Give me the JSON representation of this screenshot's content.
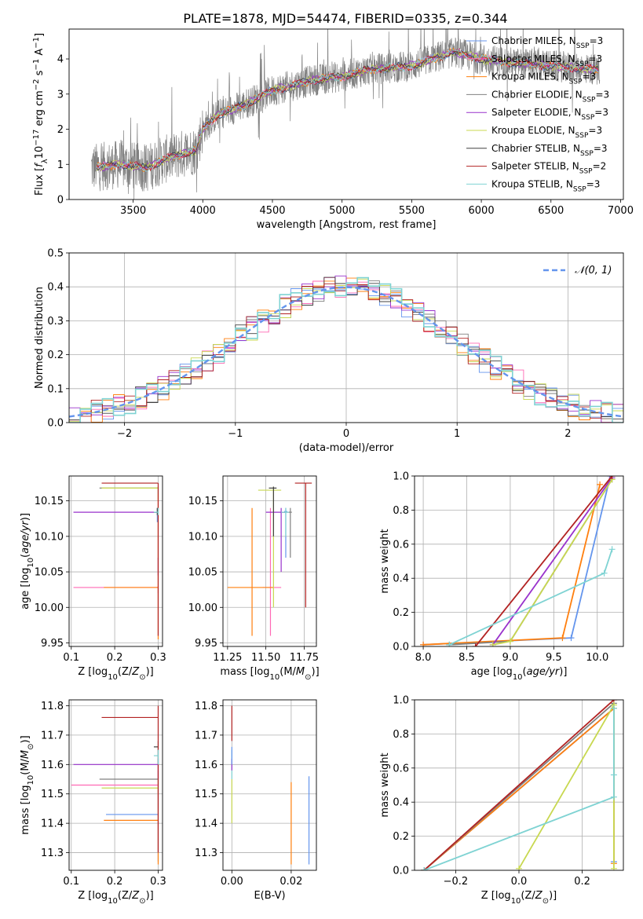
{
  "title": "PLATE=1878, MJD=54474, FIBERID=0335, z=0.344",
  "legend_spec": [
    {
      "label": "Chabrier MILES, N",
      "sub": "SSP",
      "tail": "=3",
      "color": "#6495ed"
    },
    {
      "label": "Salpeter MILES, N",
      "sub": "SSP",
      "tail": "=3",
      "color": "#ff69b4"
    },
    {
      "label": "Kroupa MILES, N",
      "sub": "SSP",
      "tail": "=3",
      "color": "#ff7f0e"
    },
    {
      "label": "Chabrier ELODIE, N",
      "sub": "SSP",
      "tail": "=3",
      "color": "#808080"
    },
    {
      "label": "Salpeter ELODIE, N",
      "sub": "SSP",
      "tail": "=3",
      "color": "#9932cc"
    },
    {
      "label": "Kroupa ELODIE, N",
      "sub": "SSP",
      "tail": "=3",
      "color": "#c8d850"
    },
    {
      "label": "Chabrier STELIB, N",
      "sub": "SSP",
      "tail": "=3",
      "color": "#404040"
    },
    {
      "label": "Salpeter STELIB, N",
      "sub": "SSP",
      "tail": "=2",
      "color": "#b22222"
    },
    {
      "label": "Kroupa STELIB, N",
      "sub": "SSP",
      "tail": "=3",
      "color": "#7fd3d3"
    }
  ],
  "chart_data": [
    {
      "id": "spectrum",
      "type": "line",
      "xlabel": "wavelength [Angstrom, rest frame]",
      "ylabel": "Flux [f_λ 10^-17 erg cm^-2 s^-1 A^-1]",
      "xlim": [
        3040,
        7020
      ],
      "ylim": [
        0,
        4.85
      ],
      "xticks": [
        3500,
        4000,
        4500,
        5000,
        5500,
        6000,
        6500,
        7000
      ],
      "yticks": [
        0,
        1,
        2,
        3,
        4
      ],
      "data_color": "#808080",
      "data_range": [
        3200,
        6850
      ],
      "continuum_knots": [
        [
          3200,
          0.9
        ],
        [
          3400,
          1.0
        ],
        [
          3600,
          0.9
        ],
        [
          3700,
          1.1
        ],
        [
          3850,
          1.3
        ],
        [
          3950,
          1.4
        ],
        [
          4000,
          2.0
        ],
        [
          4100,
          2.4
        ],
        [
          4300,
          2.7
        ],
        [
          4500,
          3.1
        ],
        [
          4800,
          3.4
        ],
        [
          5000,
          3.5
        ],
        [
          5200,
          3.7
        ],
        [
          5500,
          3.8
        ],
        [
          5800,
          4.2
        ],
        [
          6000,
          4.0
        ],
        [
          6200,
          3.9
        ],
        [
          6500,
          3.8
        ],
        [
          6850,
          3.7
        ]
      ]
    },
    {
      "id": "residuals",
      "type": "histogram",
      "xlabel": "(data-model)/error",
      "ylabel": "Normed distribution",
      "xlim": [
        -2.5,
        2.5
      ],
      "ylim": [
        0,
        0.5
      ],
      "xticks": [
        -2,
        -1,
        0,
        1,
        2
      ],
      "yticks": [
        0.0,
        0.1,
        0.2,
        0.3,
        0.4,
        0.5
      ],
      "bin_width": 0.1,
      "gaussian_label": "𝒩(0, 1)",
      "gaussian_color": "#6495ed"
    },
    {
      "id": "age-vs-Z",
      "type": "errorbar",
      "xlabel": "Z [log10(Z/Z⊙)]",
      "ylabel": "age  [log10(age/yr)]",
      "xlim": [
        0.095,
        0.31
      ],
      "ylim": [
        9.945,
        10.185
      ],
      "xticks": [
        0.1,
        0.2,
        0.3
      ],
      "yticks": [
        9.95,
        10.0,
        10.05,
        10.1,
        10.15
      ],
      "points": [
        {
          "color": "#6495ed",
          "x": 0.298,
          "y": 10.135,
          "xerr": [
            0.298,
            0.3
          ],
          "yerr": [
            10.12,
            10.14
          ]
        },
        {
          "color": "#ff69b4",
          "x": 0.3,
          "y": 10.028,
          "xerr": [
            0.105,
            0.3
          ],
          "yerr": [
            10.02,
            10.03
          ]
        },
        {
          "color": "#ff7f0e",
          "x": 0.3,
          "y": 10.028,
          "xerr": [
            0.175,
            0.3
          ],
          "yerr": [
            9.955,
            10.16
          ]
        },
        {
          "color": "#808080",
          "x": 0.3,
          "y": 10.168,
          "xerr": [
            0.165,
            0.3
          ],
          "yerr": [
            10.16,
            10.17
          ]
        },
        {
          "color": "#9932cc",
          "x": 0.3,
          "y": 10.134,
          "xerr": [
            0.105,
            0.3
          ],
          "yerr": [
            10.045,
            10.07
          ]
        },
        {
          "color": "#c8d850",
          "x": 0.3,
          "y": 10.168,
          "xerr": [
            0.17,
            0.3
          ],
          "yerr": [
            10.15,
            10.17
          ]
        },
        {
          "color": "#404040",
          "x": 0.298,
          "y": 10.134,
          "xerr": [
            0.29,
            0.3
          ],
          "yerr": [
            10.13,
            10.14
          ]
        },
        {
          "color": "#b22222",
          "x": 0.3,
          "y": 10.175,
          "xerr": [
            0.17,
            0.3
          ],
          "yerr": [
            9.96,
            10.175
          ]
        },
        {
          "color": "#7fd3d3",
          "x": 0.3,
          "y": 10.134,
          "xerr": [
            0.29,
            0.3
          ],
          "yerr": [
            10.13,
            10.14
          ]
        }
      ]
    },
    {
      "id": "age-vs-mass",
      "type": "errorbar",
      "xlabel": "mass [log10(M/M⊙)]",
      "ylabel": "",
      "xlim": [
        11.22,
        11.83
      ],
      "ylim": [
        9.945,
        10.185
      ],
      "xticks": [
        11.25,
        11.5,
        11.75
      ],
      "yticks": [
        9.95,
        10.0,
        10.05,
        10.1,
        10.15
      ],
      "points": [
        {
          "color": "#6495ed",
          "x": 11.63,
          "y": 10.135,
          "xerr": [
            11.62,
            11.64
          ],
          "yerr": [
            10.07,
            10.14
          ]
        },
        {
          "color": "#ff69b4",
          "x": 11.53,
          "y": 10.028,
          "xerr": [
            11.48,
            11.6
          ],
          "yerr": [
            9.96,
            10.14
          ]
        },
        {
          "color": "#ff7f0e",
          "x": 11.41,
          "y": 10.028,
          "xerr": [
            11.25,
            11.55
          ],
          "yerr": [
            9.96,
            10.14
          ]
        },
        {
          "color": "#808080",
          "x": 11.66,
          "y": 10.134,
          "xerr": [
            11.6,
            11.67
          ],
          "yerr": [
            10.07,
            10.14
          ]
        },
        {
          "color": "#9932cc",
          "x": 11.6,
          "y": 10.134,
          "xerr": [
            11.5,
            11.63
          ],
          "yerr": [
            10.05,
            10.14
          ]
        },
        {
          "color": "#c8d850",
          "x": 11.55,
          "y": 10.165,
          "xerr": [
            11.45,
            11.6
          ],
          "yerr": [
            10.0,
            10.17
          ]
        },
        {
          "color": "#404040",
          "x": 11.55,
          "y": 10.168,
          "xerr": [
            11.52,
            11.57
          ],
          "yerr": [
            10.1,
            10.17
          ]
        },
        {
          "color": "#b22222",
          "x": 11.76,
          "y": 10.175,
          "xerr": [
            11.69,
            11.8
          ],
          "yerr": [
            10.0,
            10.175
          ]
        },
        {
          "color": "#7fd3d3",
          "x": 11.63,
          "y": 10.134,
          "xerr": [
            11.6,
            11.65
          ],
          "yerr": [
            10.1,
            10.14
          ]
        }
      ]
    },
    {
      "id": "weight-vs-age",
      "type": "line",
      "xlabel": "age  [log10(age/yr)]",
      "ylabel": "mass weight",
      "xlim": [
        7.9,
        10.3
      ],
      "ylim": [
        0,
        1.0
      ],
      "xticks": [
        8.0,
        8.5,
        9.0,
        9.5,
        10.0
      ],
      "yticks": [
        0.0,
        0.2,
        0.4,
        0.6,
        0.8,
        1.0
      ],
      "series": [
        {
          "color": "#6495ed",
          "x": [
            8.0,
            9.7,
            10.15
          ],
          "y": [
            0.01,
            0.05,
            1.0
          ]
        },
        {
          "color": "#ff7f0e",
          "x": [
            8.0,
            9.6,
            10.03
          ],
          "y": [
            0.01,
            0.05,
            0.95
          ]
        },
        {
          "color": "#808080",
          "x": [
            8.3,
            9.0,
            10.17
          ],
          "y": [
            0.01,
            0.03,
            0.98
          ]
        },
        {
          "color": "#9932cc",
          "x": [
            8.8,
            10.17
          ],
          "y": [
            0.01,
            0.99
          ]
        },
        {
          "color": "#c8d850",
          "x": [
            8.8,
            9.0,
            10.17
          ],
          "y": [
            0.01,
            0.03,
            0.98
          ]
        },
        {
          "color": "#b22222",
          "x": [
            8.6,
            10.17
          ],
          "y": [
            0.0,
            1.0
          ]
        },
        {
          "color": "#7fd3d3",
          "x": [
            8.3,
            10.08,
            10.17
          ],
          "y": [
            0.01,
            0.43,
            0.57
          ]
        }
      ]
    },
    {
      "id": "mass-vs-Z",
      "type": "errorbar",
      "xlabel": "Z [log10(Z/Z⊙)]",
      "ylabel": "mass [log10(M/M⊙)]",
      "xlim": [
        0.095,
        0.31
      ],
      "ylim": [
        11.24,
        11.82
      ],
      "xticks": [
        0.1,
        0.2,
        0.3
      ],
      "yticks": [
        11.3,
        11.4,
        11.5,
        11.6,
        11.7,
        11.8
      ],
      "points": [
        {
          "color": "#6495ed",
          "x": 0.3,
          "y": 11.43,
          "xerr": [
            0.18,
            0.3
          ],
          "yerr": [
            11.27,
            11.5
          ]
        },
        {
          "color": "#ff69b4",
          "x": 0.3,
          "y": 11.53,
          "xerr": [
            0.1,
            0.3
          ],
          "yerr": [
            11.45,
            11.6
          ]
        },
        {
          "color": "#ff7f0e",
          "x": 0.3,
          "y": 11.41,
          "xerr": [
            0.175,
            0.3
          ],
          "yerr": [
            11.26,
            11.45
          ]
        },
        {
          "color": "#808080",
          "x": 0.3,
          "y": 11.55,
          "xerr": [
            0.165,
            0.3
          ],
          "yerr": [
            11.5,
            11.58
          ]
        },
        {
          "color": "#9932cc",
          "x": 0.3,
          "y": 11.6,
          "xerr": [
            0.105,
            0.3
          ],
          "yerr": [
            11.55,
            11.62
          ]
        },
        {
          "color": "#c8d850",
          "x": 0.3,
          "y": 11.52,
          "xerr": [
            0.17,
            0.3
          ],
          "yerr": [
            11.45,
            11.55
          ]
        },
        {
          "color": "#404040",
          "x": 0.3,
          "y": 11.66,
          "xerr": [
            0.29,
            0.3
          ],
          "yerr": [
            11.6,
            11.68
          ]
        },
        {
          "color": "#b22222",
          "x": 0.3,
          "y": 11.76,
          "xerr": [
            0.17,
            0.3
          ],
          "yerr": [
            11.3,
            11.8
          ]
        },
        {
          "color": "#7fd3d3",
          "x": 0.3,
          "y": 11.63,
          "xerr": [
            0.29,
            0.3
          ],
          "yerr": [
            11.6,
            11.65
          ]
        }
      ]
    },
    {
      "id": "mass-vs-EBV",
      "type": "errorbar",
      "xlabel": "E(B-V)",
      "ylabel": "",
      "xlim": [
        -0.003,
        0.0285
      ],
      "ylim": [
        11.24,
        11.82
      ],
      "xticks": [
        0.0,
        0.02
      ],
      "yticks": [
        11.3,
        11.4,
        11.5,
        11.6,
        11.7,
        11.8
      ],
      "points": [
        {
          "color": "#6495ed",
          "x": 0.026,
          "y": 11.43,
          "xerr": [
            0.026,
            0.026
          ],
          "yerr": [
            11.26,
            11.56
          ]
        },
        {
          "color": "#ff7f0e",
          "x": 0.02,
          "y": 11.41,
          "xerr": [
            0.02,
            0.02
          ],
          "yerr": [
            11.26,
            11.54
          ]
        },
        {
          "color": "#b22222",
          "x": 0.0,
          "y": 11.76,
          "xerr": [
            0.0,
            0.0
          ],
          "yerr": [
            11.68,
            11.8
          ]
        },
        {
          "color": "#c8d850",
          "x": 0.0,
          "y": 11.5,
          "xerr": [
            0.0,
            0.0
          ],
          "yerr": [
            11.4,
            11.55
          ]
        },
        {
          "color": "#7fd3d3",
          "x": 0.0,
          "y": 11.6,
          "xerr": [
            0.0,
            0.0
          ],
          "yerr": [
            11.55,
            11.65
          ]
        },
        {
          "color": "#9932cc",
          "x": 0.0,
          "y": 11.6,
          "xerr": [
            0.0,
            0.0
          ],
          "yerr": [
            11.58,
            11.62
          ]
        },
        {
          "color": "#6495ed",
          "x": 0.0,
          "y": 11.62,
          "xerr": [
            0.0,
            0.0
          ],
          "yerr": [
            11.6,
            11.66
          ]
        }
      ]
    },
    {
      "id": "weight-vs-Z",
      "type": "line",
      "xlabel": "Z [log10(Z/Z⊙)]",
      "ylabel": "mass weight",
      "xlim": [
        -0.33,
        0.33
      ],
      "ylim": [
        0,
        1.0
      ],
      "xticks": [
        -0.2,
        0.0,
        0.2
      ],
      "yticks": [
        0.0,
        0.2,
        0.4,
        0.6,
        0.8,
        1.0
      ],
      "series": [
        {
          "color": "#6495ed",
          "x": [
            -0.3,
            0.3,
            0.3
          ],
          "y": [
            0.0,
            0.95,
            0.05
          ]
        },
        {
          "color": "#ff7f0e",
          "x": [
            -0.3,
            0.3,
            0.3
          ],
          "y": [
            0.0,
            0.95,
            0.04
          ]
        },
        {
          "color": "#808080",
          "x": [
            -0.3,
            0.3
          ],
          "y": [
            0.0,
            0.98
          ]
        },
        {
          "color": "#b22222",
          "x": [
            -0.3,
            0.3
          ],
          "y": [
            0.0,
            1.0
          ]
        },
        {
          "color": "#c8d850",
          "x": [
            0.0,
            0.3,
            0.3
          ],
          "y": [
            0.01,
            0.97,
            0.01
          ]
        },
        {
          "color": "#7fd3d3",
          "x": [
            -0.3,
            0.3,
            0.3,
            0.3
          ],
          "y": [
            0.0,
            0.43,
            0.56,
            0.95
          ]
        }
      ]
    }
  ]
}
